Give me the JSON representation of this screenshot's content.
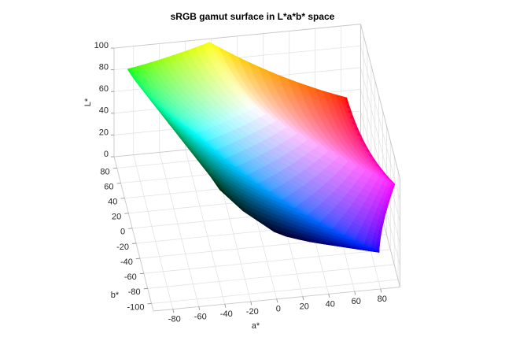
{
  "chart_data": {
    "type": "surface3d",
    "title": "sRGB gamut surface in L*a*b* space",
    "xlabel": "a*",
    "ylabel": "b*",
    "zlabel": "L*",
    "xlim": [
      -95,
      95
    ],
    "ylim": [
      -110,
      95
    ],
    "zlim": [
      0,
      100
    ],
    "xticks": [
      -80,
      -60,
      -40,
      -20,
      0,
      20,
      40,
      60,
      80
    ],
    "yticks": [
      -100,
      -80,
      -60,
      -40,
      -20,
      0,
      20,
      40,
      60,
      80
    ],
    "zticks": [
      0,
      20,
      40,
      60,
      80,
      100
    ],
    "grid": true
  }
}
